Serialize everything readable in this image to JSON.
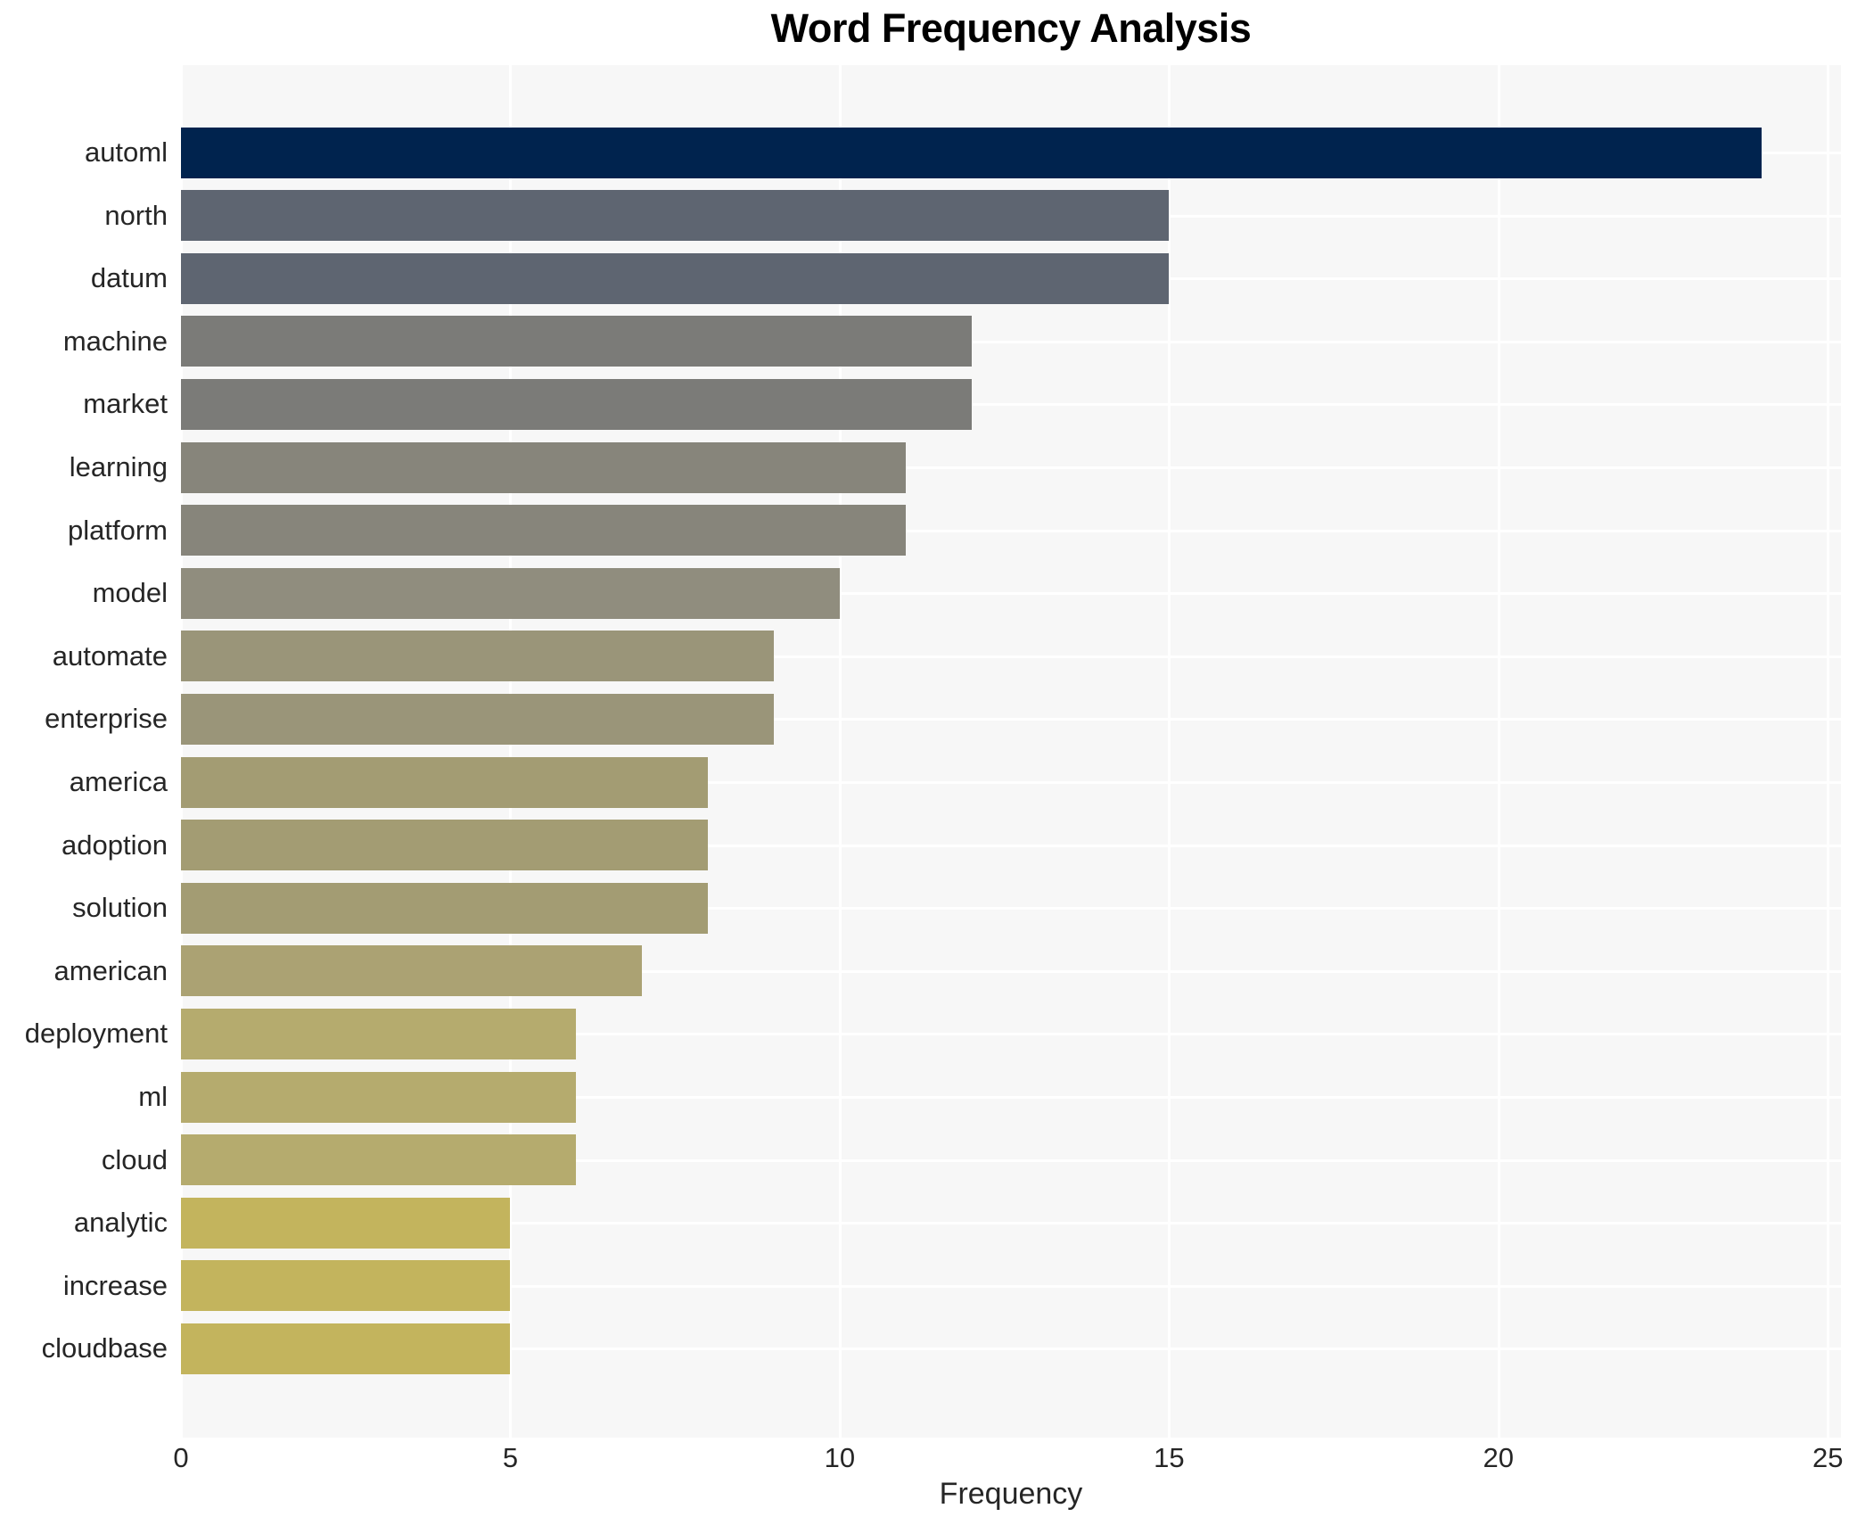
{
  "chart_data": {
    "type": "bar",
    "orientation": "horizontal",
    "title": "Word Frequency Analysis",
    "xlabel": "Frequency",
    "ylabel": "",
    "xlim": [
      0,
      25.2
    ],
    "x_ticks": [
      0,
      5,
      10,
      15,
      20,
      25
    ],
    "grid": "on",
    "legend": "none",
    "categories": [
      "automl",
      "north",
      "datum",
      "machine",
      "market",
      "learning",
      "platform",
      "model",
      "automate",
      "enterprise",
      "america",
      "adoption",
      "solution",
      "american",
      "deployment",
      "ml",
      "cloud",
      "analytic",
      "increase",
      "cloudbase"
    ],
    "values": [
      24,
      15,
      15,
      12,
      12,
      11,
      11,
      10,
      9,
      9,
      8,
      8,
      8,
      7,
      6,
      6,
      6,
      5,
      5,
      5
    ],
    "bar_colors": [
      "#00234e",
      "#5e6571",
      "#5e6571",
      "#7b7b78",
      "#7b7b78",
      "#87857b",
      "#87857b",
      "#908d7e",
      "#9a9579",
      "#9a9579",
      "#a39c73",
      "#a39c73",
      "#a39c73",
      "#aba273",
      "#b5ab6e",
      "#b5ab6e",
      "#b5ab6e",
      "#c3b45d",
      "#c3b45d",
      "#c3b45d"
    ]
  },
  "style": {
    "plot_background": "#f7f7f7",
    "grid_color": "#ffffff",
    "text_color": "#262626",
    "title_color": "#000000"
  },
  "geometry_note": "first bar row center 98px below plot top, row pitch 70.6px"
}
